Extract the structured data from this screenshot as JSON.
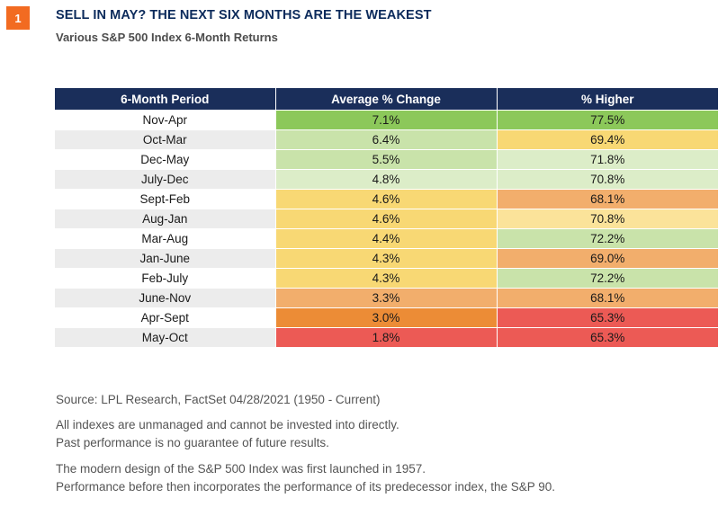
{
  "badge": "1",
  "header": {
    "title": "SELL IN MAY? THE NEXT SIX MONTHS ARE THE WEAKEST",
    "subtitle": "Various S&P 500 Index 6-Month Returns"
  },
  "colors": {
    "header_bg": "#1a2e5a",
    "badge": "#f26b21",
    "dark_green": "#8cc85a",
    "light_green": "#c9e3aa",
    "pale_green": "#dcedc8",
    "yellow": "#f8d874",
    "light_yellow": "#fbe39a",
    "light_orange": "#f2ae6c",
    "orange": "#ec8c36",
    "red": "#ec5a55"
  },
  "chart_data": {
    "type": "table",
    "columns": [
      "6-Month Period",
      "Average % Change",
      "% Higher"
    ],
    "rows": [
      {
        "period": "Nov-Apr",
        "avg_change": "7.1%",
        "pct_higher": "77.5%",
        "avg_color": "dark_green",
        "higher_color": "dark_green"
      },
      {
        "period": "Oct-Mar",
        "avg_change": "6.4%",
        "pct_higher": "69.4%",
        "avg_color": "light_green",
        "higher_color": "yellow"
      },
      {
        "period": "Dec-May",
        "avg_change": "5.5%",
        "pct_higher": "71.8%",
        "avg_color": "light_green",
        "higher_color": "pale_green"
      },
      {
        "period": "July-Dec",
        "avg_change": "4.8%",
        "pct_higher": "70.8%",
        "avg_color": "pale_green",
        "higher_color": "pale_green"
      },
      {
        "period": "Sept-Feb",
        "avg_change": "4.6%",
        "pct_higher": "68.1%",
        "avg_color": "yellow",
        "higher_color": "light_orange"
      },
      {
        "period": "Aug-Jan",
        "avg_change": "4.6%",
        "pct_higher": "70.8%",
        "avg_color": "yellow",
        "higher_color": "light_yellow"
      },
      {
        "period": "Mar-Aug",
        "avg_change": "4.4%",
        "pct_higher": "72.2%",
        "avg_color": "yellow",
        "higher_color": "light_green"
      },
      {
        "period": "Jan-June",
        "avg_change": "4.3%",
        "pct_higher": "69.0%",
        "avg_color": "yellow",
        "higher_color": "light_orange"
      },
      {
        "period": "Feb-July",
        "avg_change": "4.3%",
        "pct_higher": "72.2%",
        "avg_color": "yellow",
        "higher_color": "light_green"
      },
      {
        "period": "June-Nov",
        "avg_change": "3.3%",
        "pct_higher": "68.1%",
        "avg_color": "light_orange",
        "higher_color": "light_orange"
      },
      {
        "period": "Apr-Sept",
        "avg_change": "3.0%",
        "pct_higher": "65.3%",
        "avg_color": "orange",
        "higher_color": "red"
      },
      {
        "period": "May-Oct",
        "avg_change": "1.8%",
        "pct_higher": "65.3%",
        "avg_color": "red",
        "higher_color": "red"
      }
    ]
  },
  "footer": {
    "source": "Source: LPL Research, FactSet  04/28/2021 (1950 - Current)",
    "disclaimer_1": "All indexes are unmanaged and cannot be invested into directly.",
    "disclaimer_2": "Past performance is no guarantee of future results.",
    "note_1": "The modern design of the S&P 500 Index was first launched in 1957.",
    "note_2": "Performance before then incorporates the performance of its predecessor index, the S&P 90."
  }
}
